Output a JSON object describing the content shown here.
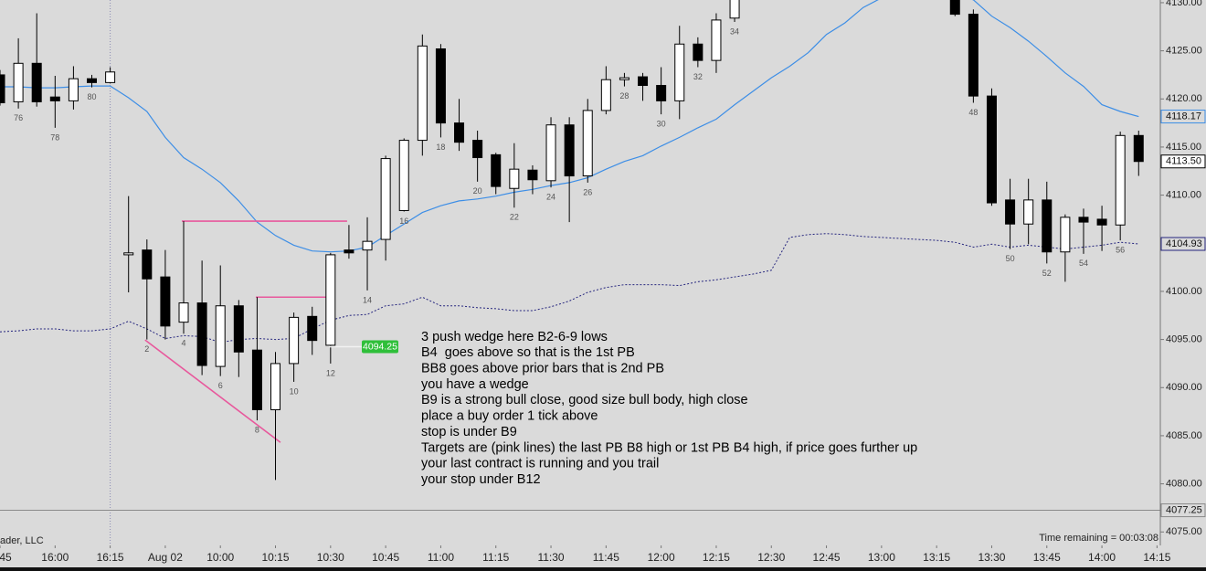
{
  "chart_data": {
    "type": "candlestick",
    "xlim": [
      0,
      63.18
    ],
    "ylim": [
      4073.6,
      4130.28
    ],
    "xticks": [
      {
        "value": 0,
        "label": "45"
      },
      {
        "value": 3,
        "label": "16:00"
      },
      {
        "value": 6,
        "label": "16:15"
      },
      {
        "value": 9,
        "label": "Aug 02"
      },
      {
        "value": 12,
        "label": "10:00"
      },
      {
        "value": 15,
        "label": "10:15"
      },
      {
        "value": 18,
        "label": "10:30"
      },
      {
        "value": 21,
        "label": "10:45"
      },
      {
        "value": 24,
        "label": "11:00"
      },
      {
        "value": 27,
        "label": "11:15"
      },
      {
        "value": 30,
        "label": "11:30"
      },
      {
        "value": 33,
        "label": "11:45"
      },
      {
        "value": 36,
        "label": "12:00"
      },
      {
        "value": 39,
        "label": "12:15"
      },
      {
        "value": 42,
        "label": "12:30"
      },
      {
        "value": 45,
        "label": "12:45"
      },
      {
        "value": 48,
        "label": "13:00"
      },
      {
        "value": 51,
        "label": "13:15"
      },
      {
        "value": 54,
        "label": "13:30"
      },
      {
        "value": 57,
        "label": "13:45"
      },
      {
        "value": 60,
        "label": "14:00"
      },
      {
        "value": 63,
        "label": "14:15"
      }
    ],
    "yticks": [
      {
        "value": 4075,
        "label": "4075.00"
      },
      {
        "value": 4080,
        "label": "4080.00"
      },
      {
        "value": 4085,
        "label": "4085.00"
      },
      {
        "value": 4090,
        "label": "4090.00"
      },
      {
        "value": 4095,
        "label": "4095.00"
      },
      {
        "value": 4100,
        "label": "4100.00"
      },
      {
        "value": 4105,
        "label": "4105.00"
      },
      {
        "value": 4110,
        "label": "4110.00"
      },
      {
        "value": 4115,
        "label": "4115.00"
      },
      {
        "value": 4120,
        "label": "4120.00"
      },
      {
        "value": 4125,
        "label": "4125.00"
      },
      {
        "value": 4130,
        "label": "4130.00"
      }
    ],
    "candles": {
      "up_color": "#ffffff",
      "down_color": "#000000",
      "x": [
        0,
        1,
        2,
        3,
        4,
        5,
        6,
        7,
        8,
        9,
        10,
        11,
        12,
        13,
        14,
        15,
        16,
        17,
        18,
        19,
        20,
        21,
        22,
        23,
        24,
        25,
        26,
        27,
        28,
        29,
        30,
        31,
        32,
        33,
        34,
        35,
        36,
        37,
        38,
        39,
        40,
        52,
        53,
        54,
        55,
        56,
        57,
        58,
        59,
        60,
        61,
        62
      ],
      "open": [
        4122.5,
        4119.7,
        4123.7,
        4120.2,
        4119.8,
        4122.1,
        4121.7,
        4103.8,
        4104.3,
        4101.5,
        4096.8,
        4098.8,
        4092.2,
        4098.5,
        4093.9,
        4087.7,
        4092.5,
        4097.4,
        4094.4,
        4104.3,
        4104.3,
        4105.4,
        4108.4,
        4115.7,
        4125.2,
        4117.5,
        4115.7,
        4114.2,
        4110.7,
        4112.6,
        4111.5,
        4117.3,
        4112.0,
        4118.8,
        4122.0,
        4122.3,
        4121.4,
        4119.8,
        4125.7,
        4124.0,
        4128.4,
        4133.0,
        4128.8,
        4120.3,
        4109.5,
        4107.0,
        4109.5,
        4104.1,
        4107.7,
        4107.5,
        4106.9,
        4116.2
      ],
      "high": [
        4123.0,
        4126.3,
        4128.9,
        4122.4,
        4123.4,
        4122.5,
        4123.3,
        4109.9,
        4105.4,
        4104.3,
        4107.3,
        4103.2,
        4102.7,
        4099.1,
        4099.4,
        4093.7,
        4097.8,
        4098.4,
        4104.0,
        4106.9,
        4107.7,
        4114.1,
        4115.9,
        4126.7,
        4125.7,
        4120.0,
        4116.7,
        4114.4,
        4115.4,
        4113.1,
        4118.1,
        4118.1,
        4120.0,
        4123.4,
        4122.7,
        4122.7,
        4123.3,
        4127.6,
        4126.4,
        4128.9,
        4132.0,
        4134.0,
        4129.3,
        4121.1,
        4111.7,
        4111.7,
        4111.4,
        4108.0,
        4108.6,
        4108.9,
        4116.6,
        4116.7
      ],
      "low": [
        4119.3,
        4119.0,
        4119.2,
        4117.0,
        4118.9,
        4121.2,
        4121.6,
        4099.9,
        4095.0,
        4095.0,
        4095.6,
        4091.3,
        4091.2,
        4091.1,
        4086.6,
        4080.4,
        4090.6,
        4093.4,
        4092.5,
        4103.4,
        4100.1,
        4103.2,
        4108.3,
        4114.1,
        4116.0,
        4114.6,
        4111.4,
        4110.1,
        4108.7,
        4110.1,
        4110.8,
        4107.2,
        4111.3,
        4118.4,
        4121.3,
        4119.8,
        4118.4,
        4117.9,
        4123.3,
        4122.7,
        4128.0,
        4128.6,
        4119.6,
        4108.9,
        4104.4,
        4104.9,
        4102.9,
        4101.0,
        4103.9,
        4104.2,
        4105.3,
        4112.0
      ],
      "close": [
        4119.6,
        4123.7,
        4119.7,
        4119.8,
        4122.1,
        4121.7,
        4122.8,
        4104.0,
        4101.3,
        4096.4,
        4098.8,
        4092.3,
        4098.5,
        4093.7,
        4087.7,
        4092.5,
        4097.3,
        4094.9,
        4103.8,
        4104.0,
        4105.2,
        4113.8,
        4115.7,
        4125.5,
        4117.5,
        4115.5,
        4113.9,
        4110.9,
        4112.7,
        4111.6,
        4117.3,
        4112.0,
        4118.8,
        4122.0,
        4122.2,
        4121.4,
        4119.8,
        4125.7,
        4124.0,
        4128.2,
        4131.5,
        4128.8,
        4120.3,
        4109.2,
        4107.0,
        4109.5,
        4104.1,
        4107.7,
        4107.2,
        4106.9,
        4116.2,
        4113.5
      ],
      "labels": [
        null,
        "76",
        null,
        "78",
        null,
        "80",
        null,
        null,
        "2",
        null,
        "4",
        null,
        "6",
        null,
        "8",
        null,
        "10",
        null,
        "12",
        null,
        "14",
        null,
        "16",
        null,
        "18",
        null,
        "20",
        null,
        "22",
        null,
        "24",
        null,
        "26",
        null,
        "28",
        null,
        "30",
        null,
        "32",
        null,
        "34",
        null,
        "48",
        null,
        "50",
        null,
        "52",
        null,
        "54",
        null,
        "56",
        null
      ]
    },
    "ema": {
      "color": "#3d8ee6",
      "x": [
        0,
        1,
        2,
        3,
        4,
        5,
        6,
        7,
        8,
        9,
        10,
        11,
        12,
        13,
        14,
        15,
        16,
        17,
        18,
        19,
        20,
        21,
        22,
        23,
        24,
        25,
        26,
        27,
        28,
        29,
        30,
        31,
        32,
        33,
        34,
        35,
        36,
        37,
        38,
        39,
        40,
        41,
        42,
        43,
        44,
        45,
        46,
        47,
        48,
        49,
        50,
        51,
        52,
        53,
        54,
        55,
        56,
        57,
        58,
        59,
        60,
        61,
        62
      ],
      "values": [
        4121.26,
        4121.26,
        4121.16,
        4121.16,
        4121.26,
        4121.35,
        4121.35,
        4120.12,
        4118.7,
        4116.0,
        4113.9,
        4112.7,
        4111.3,
        4109.4,
        4107.2,
        4105.8,
        4104.8,
        4104.2,
        4104.1,
        4104.2,
        4104.6,
        4105.8,
        4107.0,
        4108.2,
        4108.9,
        4109.4,
        4109.6,
        4109.9,
        4110.3,
        4110.6,
        4111.0,
        4111.3,
        4111.8,
        4112.7,
        4113.5,
        4114.1,
        4115.1,
        4116.0,
        4117.0,
        4117.9,
        4119.4,
        4120.8,
        4122.2,
        4123.4,
        4124.8,
        4126.7,
        4127.9,
        4129.5,
        4130.5,
        4131.0,
        4131.3,
        4131.2,
        4130.8,
        4130.3,
        4128.6,
        4127.4,
        4126.0,
        4124.4,
        4122.7,
        4121.3,
        4119.4,
        4118.7,
        4118.17
      ]
    },
    "vwap": {
      "color": "#25257e",
      "x": [
        0,
        1,
        2,
        3,
        4,
        5,
        6,
        7,
        8,
        9,
        10,
        11,
        12,
        13,
        14,
        15,
        16,
        17,
        18,
        19,
        20,
        21,
        22,
        23,
        24,
        25,
        26,
        27,
        28,
        29,
        30,
        31,
        32,
        33,
        34,
        35,
        36,
        37,
        38,
        39,
        40,
        41,
        42,
        43,
        44,
        45,
        46,
        47,
        48,
        49,
        50,
        51,
        52,
        53,
        54,
        55,
        56,
        57,
        58,
        59,
        60,
        61,
        62
      ],
      "values": [
        4095.8,
        4095.9,
        4096.1,
        4096.1,
        4095.9,
        4095.9,
        4096.1,
        4096.9,
        4096.1,
        4095.1,
        4095.4,
        4095.3,
        4094.7,
        4095.0,
        4095.1,
        4095.0,
        4095.1,
        4096.1,
        4097.0,
        4097.5,
        4097.6,
        4098.5,
        4098.7,
        4099.4,
        4098.5,
        4098.5,
        4098.3,
        4098.2,
        4098.0,
        4098.0,
        4098.4,
        4099.0,
        4099.9,
        4100.4,
        4100.7,
        4100.7,
        4100.7,
        4100.6,
        4101.0,
        4101.2,
        4101.5,
        4101.8,
        4102.2,
        4105.6,
        4105.9,
        4106.0,
        4105.9,
        4105.7,
        4105.6,
        4105.5,
        4105.4,
        4105.3,
        4105.1,
        4104.6,
        4104.9,
        4104.6,
        4104.8,
        4104.6,
        4104.4,
        4104.6,
        4104.8,
        4105.1,
        4104.93
      ]
    },
    "session_break": 6,
    "drawings": {
      "color": "#e8589c",
      "lines": [
        {
          "x": [
            7.9,
            15.27
          ],
          "y": [
            4094.95,
            4084.3
          ]
        },
        {
          "x": [
            9.9,
            18.9
          ],
          "y": [
            4107.3,
            4107.3
          ]
        },
        {
          "x": [
            13.93,
            18.1
          ],
          "y": [
            4099.4,
            4099.4
          ]
        }
      ]
    },
    "price_marker": {
      "value": 4094.25,
      "x": 17.9,
      "color": "#2fbf3a"
    },
    "horizontal_line": 4077.25,
    "axis_labels": [
      4118.17,
      {
        "value": 4113.5,
        "label": "4113.50"
      },
      4104.93
    ],
    "annotation": [
      "3 push wedge here B2-6-9 lows",
      "B4  goes above so that is the 1st PB",
      "BB8 goes above prior bars that is 2nd PB",
      "you have a wedge",
      "B9 is a strong bull close, good size bull body, high close",
      "place a buy order 1 tick above",
      "stop is under B9",
      "Targets are (pink lines) the last PB B8 high or 1st PB B4 high, if price goes further up",
      "your last contract is running and you trail",
      "your stop under B12"
    ],
    "footer_left": "ader, LLC",
    "footer_right": "Time remaining = 00:03:08"
  }
}
